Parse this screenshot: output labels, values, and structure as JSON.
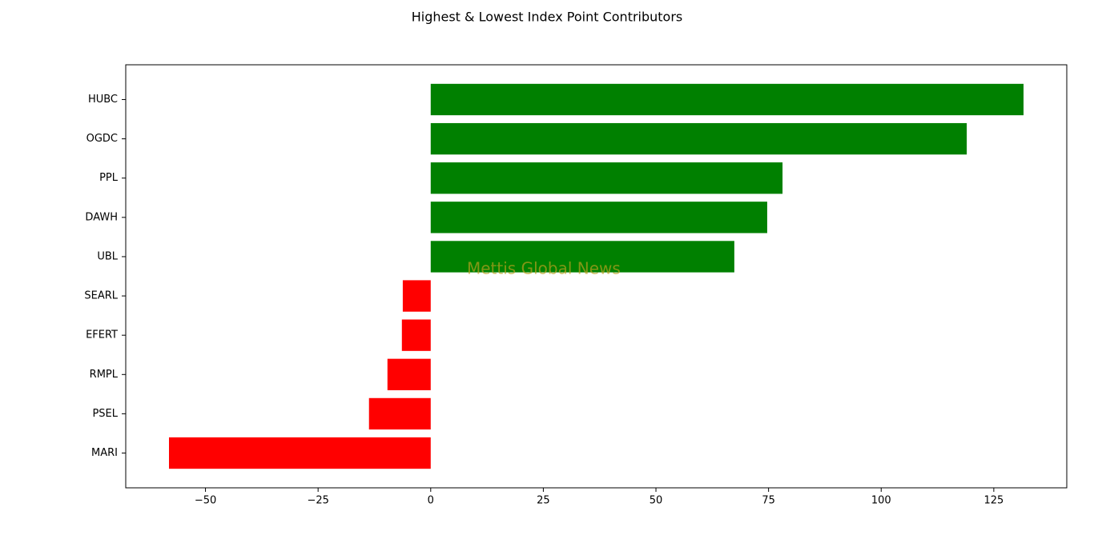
{
  "chart_data": {
    "type": "barh",
    "title": "Highest & Lowest Index Point Contributors",
    "categories": [
      "HUBC",
      "OGDC",
      "PPL",
      "DAWH",
      "UBL",
      "SEARL",
      "EFERT",
      "RMPL",
      "PSEL",
      "MARI"
    ],
    "values": [
      131.6,
      119.0,
      78.1,
      74.7,
      67.4,
      -6.2,
      -6.4,
      -9.6,
      -13.7,
      -58.1
    ],
    "colors": [
      "#008000",
      "#008000",
      "#008000",
      "#008000",
      "#008000",
      "#ff0000",
      "#ff0000",
      "#ff0000",
      "#ff0000",
      "#ff0000"
    ],
    "xlim": [
      -67.7,
      141.2
    ],
    "xticks": [
      {
        "value": -50,
        "label": "−50"
      },
      {
        "value": -25,
        "label": "−25"
      },
      0,
      25,
      50,
      75,
      100,
      125
    ],
    "watermark": "Mettis Global News"
  }
}
